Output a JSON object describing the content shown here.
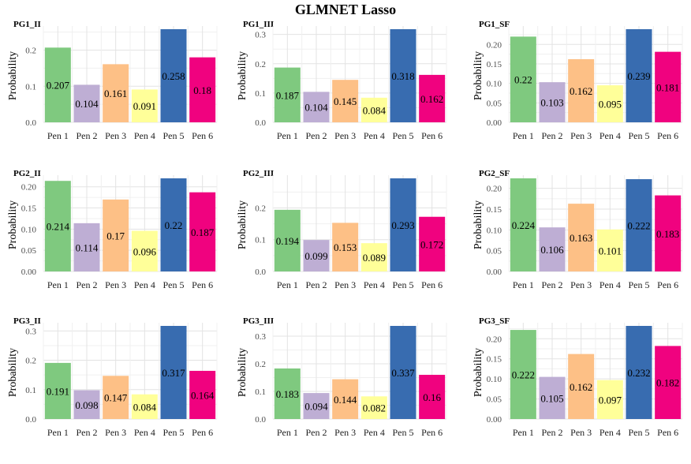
{
  "title": "GLMNET Lasso",
  "colors": [
    "#7fc97f",
    "#beaed4",
    "#fdc086",
    "#ffff99",
    "#386cb0",
    "#f0027f"
  ],
  "chart_data": [
    {
      "type": "bar",
      "title": "PG1_II",
      "xlabel": "",
      "ylabel": "Probability",
      "categories": [
        "Pen 1",
        "Pen 2",
        "Pen 3",
        "Pen 4",
        "Pen 5",
        "Pen 6"
      ],
      "values": [
        0.207,
        0.104,
        0.161,
        0.091,
        0.258,
        0.18
      ],
      "labels": [
        "0.207",
        "0.104",
        "0.161",
        "0.091",
        "0.258",
        "0.18"
      ],
      "yticks": [
        "0.0",
        "0.1",
        "0.2"
      ],
      "ytick_values": [
        0,
        0.1,
        0.2
      ],
      "ylim": [
        0,
        0.258
      ]
    },
    {
      "type": "bar",
      "title": "PG1_III",
      "xlabel": "",
      "ylabel": "Probability",
      "categories": [
        "Pen 1",
        "Pen 2",
        "Pen 3",
        "Pen 4",
        "Pen 5",
        "Pen 6"
      ],
      "values": [
        0.187,
        0.104,
        0.145,
        0.084,
        0.318,
        0.162
      ],
      "labels": [
        "0.187",
        "0.104",
        "0.145",
        "0.084",
        "0.318",
        "0.162"
      ],
      "yticks": [
        "0.0",
        "0.1",
        "0.2",
        "0.3"
      ],
      "ytick_values": [
        0,
        0.1,
        0.2,
        0.3
      ],
      "ylim": [
        0,
        0.318
      ]
    },
    {
      "type": "bar",
      "title": "PG1_SF",
      "xlabel": "",
      "ylabel": "Probability",
      "categories": [
        "Pen 1",
        "Pen 2",
        "Pen 3",
        "Pen 4",
        "Pen 5",
        "Pen 6"
      ],
      "values": [
        0.22,
        0.103,
        0.162,
        0.095,
        0.239,
        0.181
      ],
      "labels": [
        "0.22",
        "0.103",
        "0.162",
        "0.095",
        "0.239",
        "0.181"
      ],
      "yticks": [
        "0.00",
        "0.05",
        "0.10",
        "0.15",
        "0.20"
      ],
      "ytick_values": [
        0,
        0.05,
        0.1,
        0.15,
        0.2
      ],
      "ylim": [
        0,
        0.239
      ]
    },
    {
      "type": "bar",
      "title": "PG2_II",
      "xlabel": "",
      "ylabel": "Probability",
      "categories": [
        "Pen 1",
        "Pen 2",
        "Pen 3",
        "Pen 4",
        "Pen 5",
        "Pen 6"
      ],
      "values": [
        0.214,
        0.114,
        0.17,
        0.096,
        0.22,
        0.187
      ],
      "labels": [
        "0.214",
        "0.114",
        "0.17",
        "0.096",
        "0.22",
        "0.187"
      ],
      "yticks": [
        "0.00",
        "0.05",
        "0.10",
        "0.15",
        "0.20"
      ],
      "ytick_values": [
        0,
        0.05,
        0.1,
        0.15,
        0.2
      ],
      "ylim": [
        0,
        0.22
      ]
    },
    {
      "type": "bar",
      "title": "PG2_III",
      "xlabel": "",
      "ylabel": "Probability",
      "categories": [
        "Pen 1",
        "Pen 2",
        "Pen 3",
        "Pen 4",
        "Pen 5",
        "Pen 6"
      ],
      "values": [
        0.194,
        0.099,
        0.153,
        0.089,
        0.293,
        0.172
      ],
      "labels": [
        "0.194",
        "0.099",
        "0.153",
        "0.089",
        "0.293",
        "0.172"
      ],
      "yticks": [
        "0.0",
        "0.1",
        "0.2"
      ],
      "ytick_values": [
        0,
        0.1,
        0.2
      ],
      "ylim": [
        0,
        0.293
      ]
    },
    {
      "type": "bar",
      "title": "PG2_SF",
      "xlabel": "",
      "ylabel": "Probability",
      "categories": [
        "Pen 1",
        "Pen 2",
        "Pen 3",
        "Pen 4",
        "Pen 5",
        "Pen 6"
      ],
      "values": [
        0.224,
        0.106,
        0.163,
        0.101,
        0.222,
        0.183
      ],
      "labels": [
        "0.224",
        "0.106",
        "0.163",
        "0.101",
        "0.222",
        "0.183"
      ],
      "yticks": [
        "0.00",
        "0.05",
        "0.10",
        "0.15",
        "0.20"
      ],
      "ytick_values": [
        0,
        0.05,
        0.1,
        0.15,
        0.2
      ],
      "ylim": [
        0,
        0.224
      ]
    },
    {
      "type": "bar",
      "title": "PG3_II",
      "xlabel": "",
      "ylabel": "Probability",
      "categories": [
        "Pen 1",
        "Pen 2",
        "Pen 3",
        "Pen 4",
        "Pen 5",
        "Pen 6"
      ],
      "values": [
        0.191,
        0.098,
        0.147,
        0.084,
        0.317,
        0.164
      ],
      "labels": [
        "0.191",
        "0.098",
        "0.147",
        "0.084",
        "0.317",
        "0.164"
      ],
      "yticks": [
        "0.0",
        "0.1",
        "0.2",
        "0.3"
      ],
      "ytick_values": [
        0,
        0.1,
        0.2,
        0.3
      ],
      "ylim": [
        0,
        0.317
      ]
    },
    {
      "type": "bar",
      "title": "PG3_III",
      "xlabel": "",
      "ylabel": "Probability",
      "categories": [
        "Pen 1",
        "Pen 2",
        "Pen 3",
        "Pen 4",
        "Pen 5",
        "Pen 6"
      ],
      "values": [
        0.183,
        0.094,
        0.144,
        0.082,
        0.337,
        0.16
      ],
      "labels": [
        "0.183",
        "0.094",
        "0.144",
        "0.082",
        "0.337",
        "0.16"
      ],
      "yticks": [
        "0.0",
        "0.1",
        "0.2",
        "0.3"
      ],
      "ytick_values": [
        0,
        0.1,
        0.2,
        0.3
      ],
      "ylim": [
        0,
        0.337
      ]
    },
    {
      "type": "bar",
      "title": "PG3_SF",
      "xlabel": "",
      "ylabel": "Probability",
      "categories": [
        "Pen 1",
        "Pen 2",
        "Pen 3",
        "Pen 4",
        "Pen 5",
        "Pen 6"
      ],
      "values": [
        0.222,
        0.105,
        0.162,
        0.097,
        0.232,
        0.182
      ],
      "labels": [
        "0.222",
        "0.105",
        "0.162",
        "0.097",
        "0.232",
        "0.182"
      ],
      "yticks": [
        "0.00",
        "0.05",
        "0.10",
        "0.15",
        "0.20"
      ],
      "ytick_values": [
        0,
        0.05,
        0.1,
        0.15,
        0.2
      ],
      "ylim": [
        0,
        0.232
      ]
    }
  ]
}
